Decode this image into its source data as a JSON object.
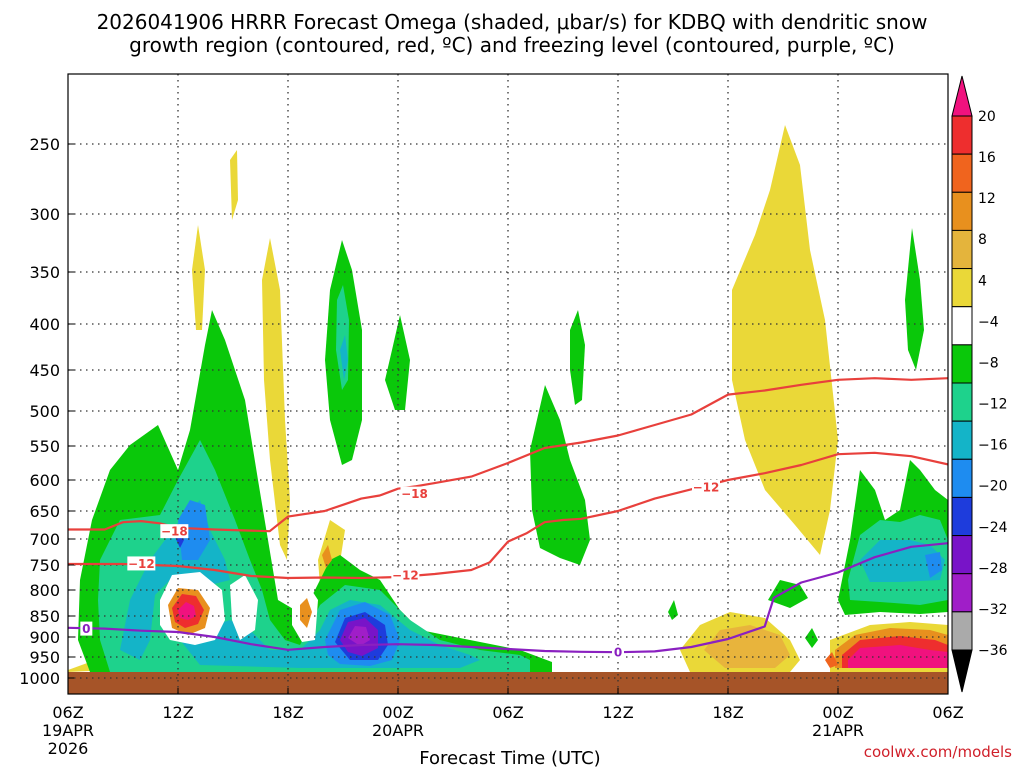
{
  "chart_data": {
    "type": "heatmap",
    "title_line1": "2026041906 HRRR Forecast Omega (shaded, μbar/s) for KDBQ with dendritic snow",
    "title_line2": "growth region (contoured, red, ºC) and freezing level (contoured, purple, ºC)",
    "xlabel": "Forecast Time (UTC)",
    "credit": "coolwx.com/models",
    "x_ticks": [
      {
        "hour": 0,
        "label": "06Z",
        "sub1": "19APR",
        "sub2": "2026"
      },
      {
        "hour": 6,
        "label": "12Z",
        "sub1": "",
        "sub2": ""
      },
      {
        "hour": 12,
        "label": "18Z",
        "sub1": "",
        "sub2": ""
      },
      {
        "hour": 18,
        "label": "00Z",
        "sub1": "20APR",
        "sub2": ""
      },
      {
        "hour": 24,
        "label": "06Z",
        "sub1": "",
        "sub2": ""
      },
      {
        "hour": 30,
        "label": "12Z",
        "sub1": "",
        "sub2": ""
      },
      {
        "hour": 36,
        "label": "18Z",
        "sub1": "",
        "sub2": ""
      },
      {
        "hour": 42,
        "label": "00Z",
        "sub1": "21APR",
        "sub2": ""
      },
      {
        "hour": 48,
        "label": "06Z",
        "sub1": "",
        "sub2": ""
      }
    ],
    "x_range": [
      0,
      48
    ],
    "y_ticks": [
      "250",
      "300",
      "350",
      "400",
      "450",
      "500",
      "550",
      "600",
      "650",
      "700",
      "750",
      "800",
      "850",
      "900",
      "950",
      "1000"
    ],
    "y_range_hpa": [
      200,
      1025
    ],
    "colorbar": {
      "labels": [
        "20",
        "16",
        "12",
        "8",
        "4",
        "−4",
        "−8",
        "−12",
        "−16",
        "−20",
        "−24",
        "−28",
        "−32",
        "−36"
      ],
      "colors": [
        "#f0127e",
        "#ee2e2e",
        "#f0641e",
        "#e8901e",
        "#e4b43c",
        "#ead838",
        "#ffffff",
        "#0ac80a",
        "#1ed28c",
        "#14b4c8",
        "#1e8cf0",
        "#1e3cdc",
        "#7814c8",
        "#a01ec8",
        "#aaaaaa",
        "#000000"
      ]
    },
    "series": [
      {
        "name": "-18 C isotherm",
        "color": "#e8403c",
        "label": "−18",
        "points": [
          [
            0,
            683
          ],
          [
            2,
            683
          ],
          [
            3,
            670
          ],
          [
            4,
            668
          ],
          [
            5,
            672
          ],
          [
            6,
            680
          ],
          [
            8,
            683
          ],
          [
            10,
            685
          ],
          [
            11,
            686
          ],
          [
            12,
            660
          ],
          [
            14,
            650
          ],
          [
            15,
            640
          ],
          [
            16,
            630
          ],
          [
            17,
            625
          ],
          [
            18,
            614
          ],
          [
            19,
            610
          ],
          [
            20,
            605
          ],
          [
            22,
            595
          ],
          [
            24,
            575
          ],
          [
            26,
            553
          ],
          [
            28,
            545
          ],
          [
            30,
            535
          ],
          [
            32,
            520
          ],
          [
            34,
            505
          ],
          [
            36,
            480
          ],
          [
            38,
            475
          ],
          [
            40,
            468
          ],
          [
            42,
            462
          ],
          [
            44,
            460
          ],
          [
            46,
            462
          ],
          [
            48,
            460
          ]
        ]
      },
      {
        "name": "-12 C isotherm",
        "color": "#e8403c",
        "label": "−12",
        "points": [
          [
            0,
            748
          ],
          [
            3,
            748
          ],
          [
            6,
            752
          ],
          [
            8,
            760
          ],
          [
            10,
            772
          ],
          [
            12,
            776
          ],
          [
            14,
            775
          ],
          [
            16,
            776
          ],
          [
            18,
            774
          ],
          [
            20,
            768
          ],
          [
            22,
            760
          ],
          [
            23,
            745
          ],
          [
            24,
            705
          ],
          [
            25,
            690
          ],
          [
            26,
            670
          ],
          [
            27,
            666
          ],
          [
            28,
            664
          ],
          [
            30,
            650
          ],
          [
            32,
            630
          ],
          [
            34,
            615
          ],
          [
            36,
            600
          ],
          [
            38,
            590
          ],
          [
            40,
            578
          ],
          [
            42,
            562
          ],
          [
            44,
            560
          ],
          [
            46,
            565
          ],
          [
            48,
            577
          ]
        ]
      },
      {
        "name": "freezing level",
        "color": "#8a20c0",
        "label": "0",
        "points": [
          [
            0,
            878
          ],
          [
            2,
            880
          ],
          [
            4,
            885
          ],
          [
            6,
            888
          ],
          [
            8,
            900
          ],
          [
            10,
            918
          ],
          [
            12,
            932
          ],
          [
            14,
            925
          ],
          [
            16,
            920
          ],
          [
            18,
            918
          ],
          [
            20,
            920
          ],
          [
            22,
            925
          ],
          [
            24,
            930
          ],
          [
            26,
            935
          ],
          [
            28,
            937
          ],
          [
            30,
            938
          ],
          [
            32,
            936
          ],
          [
            34,
            925
          ],
          [
            36,
            905
          ],
          [
            38,
            875
          ],
          [
            38.5,
            815
          ],
          [
            40,
            785
          ],
          [
            42,
            765
          ],
          [
            44,
            735
          ],
          [
            46,
            715
          ],
          [
            48,
            708
          ]
        ]
      }
    ],
    "contour_labels": [
      {
        "text": "−18",
        "hour": 5.8,
        "hpa": 686,
        "color": "#e8403c"
      },
      {
        "text": "−18",
        "hour": 18.9,
        "hpa": 622,
        "color": "#e8403c"
      },
      {
        "text": "−12",
        "hour": 4.0,
        "hpa": 747,
        "color": "#e8403c"
      },
      {
        "text": "−12",
        "hour": 18.4,
        "hpa": 770,
        "color": "#e8403c"
      },
      {
        "text": "−12",
        "hour": 34.8,
        "hpa": 611,
        "color": "#e8403c"
      },
      {
        "text": "0",
        "hour": 1.0,
        "hpa": 880,
        "color": "#8a20c0"
      },
      {
        "text": "0",
        "hour": 30.0,
        "hpa": 938,
        "color": "#8a20c0"
      }
    ]
  }
}
